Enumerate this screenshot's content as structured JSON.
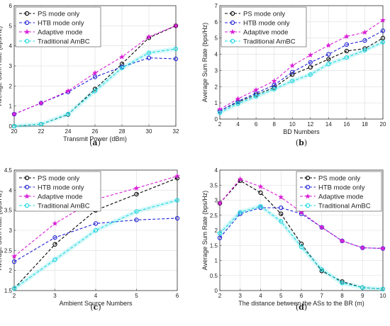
{
  "chart_data": [
    {
      "id": "a",
      "type": "line",
      "panel_label": "(a)",
      "xlabel": "Transmit Power (dBm)",
      "ylabel": "Average Sum Rate (bps/Hz)",
      "xlim": [
        20,
        32
      ],
      "ylim": [
        0,
        6
      ],
      "xticks": [
        "20",
        "22",
        "24",
        "26",
        "28",
        "30",
        "32"
      ],
      "yticks": [
        "0",
        "1",
        "2",
        "3",
        "4",
        "5",
        "6"
      ],
      "grid": true,
      "legend_position": "top-left",
      "x": [
        20,
        22,
        24,
        26,
        28,
        30,
        32
      ],
      "series": [
        {
          "name": "PS mode only",
          "color": "#000000",
          "marker": "circle",
          "values": [
            0.0,
            0.1,
            0.58,
            1.85,
            3.1,
            4.4,
            5.0
          ]
        },
        {
          "name": "HTB mode only",
          "color": "#1f1fd6",
          "marker": "circle",
          "values": [
            0.6,
            1.15,
            1.7,
            2.45,
            2.95,
            3.4,
            3.35
          ]
        },
        {
          "name": "Adaptive mode",
          "color": "#d91fd6",
          "marker": "star",
          "values": [
            0.6,
            1.15,
            1.75,
            2.65,
            3.45,
            4.45,
            5.0
          ]
        },
        {
          "name": "Traditional AmBC",
          "color": "#19d8e0",
          "marker": "circle",
          "values": [
            0.0,
            0.1,
            0.6,
            1.75,
            2.9,
            3.65,
            3.85
          ]
        }
      ]
    },
    {
      "id": "b",
      "type": "line",
      "panel_label": "(b)",
      "xlabel": "BD Numbers",
      "ylabel": "Average Sum Rate (bps/Hz)",
      "xlim": [
        2,
        20
      ],
      "ylim": [
        0,
        7
      ],
      "xticks": [
        "2",
        "4",
        "6",
        "8",
        "10",
        "12",
        "14",
        "16",
        "18",
        "20"
      ],
      "yticks": [
        "0",
        "1",
        "2",
        "3",
        "4",
        "5",
        "6",
        "7"
      ],
      "grid": true,
      "legend_position": "top-left",
      "x": [
        2,
        4,
        6,
        8,
        10,
        12,
        14,
        16,
        18,
        20
      ],
      "series": [
        {
          "name": "PS mode only",
          "color": "#000000",
          "marker": "circle",
          "values": [
            0.5,
            1.05,
            1.5,
            1.95,
            2.75,
            3.2,
            3.7,
            4.2,
            4.35,
            5.0
          ]
        },
        {
          "name": "HTB mode only",
          "color": "#1f1fd6",
          "marker": "circle",
          "values": [
            0.5,
            1.1,
            1.6,
            2.1,
            2.9,
            3.5,
            4.0,
            4.6,
            4.85,
            5.45
          ]
        },
        {
          "name": "Adaptive mode",
          "color": "#d91fd6",
          "marker": "star",
          "values": [
            0.6,
            1.25,
            1.8,
            2.35,
            3.3,
            3.95,
            4.55,
            5.1,
            5.35,
            6.1
          ]
        },
        {
          "name": "Traditional AmBC",
          "color": "#19d8e0",
          "marker": "circle",
          "values": [
            0.4,
            0.95,
            1.4,
            1.85,
            2.35,
            2.75,
            3.4,
            3.8,
            4.25,
            4.75
          ]
        }
      ]
    },
    {
      "id": "c",
      "type": "line",
      "panel_label": "(c)",
      "xlabel": "Ambient Source Numbers",
      "ylabel": "Average Sum Rate (bps/Hz)",
      "xlim": [
        2,
        6
      ],
      "ylim": [
        1.5,
        4.5
      ],
      "xticks": [
        "2",
        "3",
        "4",
        "5",
        "6"
      ],
      "yticks": [
        "1.5",
        "2",
        "2.5",
        "3",
        "3.5",
        "4",
        "4.5"
      ],
      "grid": true,
      "legend_position": "top-left",
      "x": [
        2,
        3,
        4,
        5,
        6
      ],
      "series": [
        {
          "name": "PS mode only",
          "color": "#000000",
          "marker": "circle",
          "values": [
            1.55,
            2.65,
            3.5,
            3.9,
            4.3
          ]
        },
        {
          "name": "HTB mode only",
          "color": "#1f1fd6",
          "marker": "circle",
          "values": [
            2.22,
            2.82,
            3.17,
            3.26,
            3.3
          ]
        },
        {
          "name": "Adaptive mode",
          "color": "#d91fd6",
          "marker": "star",
          "values": [
            2.35,
            3.17,
            3.77,
            4.05,
            4.35
          ]
        },
        {
          "name": "Traditional AmBC",
          "color": "#19d8e0",
          "marker": "circle",
          "values": [
            1.55,
            2.27,
            3.0,
            3.47,
            3.75
          ]
        }
      ]
    },
    {
      "id": "d",
      "type": "line",
      "panel_label": "(d)",
      "xlabel": "The distance between the ASs to the BR (m)",
      "ylabel": "Average Sum Rate (bps/Hz)",
      "xlim": [
        2,
        10
      ],
      "ylim": [
        0,
        4
      ],
      "xticks": [
        "2",
        "3",
        "4",
        "5",
        "6",
        "7",
        "8",
        "9",
        "10"
      ],
      "yticks": [
        "0",
        "0.5",
        "1",
        "1.5",
        "2",
        "2.5",
        "3",
        "3.5",
        "4"
      ],
      "grid": true,
      "legend_position": "top-right",
      "x": [
        2,
        3,
        4,
        5,
        6,
        7,
        8,
        9,
        10
      ],
      "series": [
        {
          "name": "PS mode only",
          "color": "#000000",
          "marker": "circle",
          "values": [
            2.9,
            3.65,
            3.25,
            2.55,
            1.55,
            0.65,
            0.3,
            0.1,
            0.05
          ]
        },
        {
          "name": "HTB mode only",
          "color": "#1f1fd6",
          "marker": "circle",
          "values": [
            1.75,
            2.55,
            2.75,
            2.75,
            2.55,
            2.1,
            1.65,
            1.42,
            1.4
          ]
        },
        {
          "name": "Adaptive mode",
          "color": "#d91fd6",
          "marker": "star",
          "values": [
            2.9,
            3.7,
            3.45,
            3.1,
            2.6,
            2.1,
            1.65,
            1.42,
            1.4
          ]
        },
        {
          "name": "Traditional AmBC",
          "color": "#19d8e0",
          "marker": "circle",
          "values": [
            1.9,
            2.6,
            2.8,
            2.3,
            1.45,
            0.7,
            0.25,
            0.1,
            0.05
          ]
        }
      ]
    }
  ]
}
